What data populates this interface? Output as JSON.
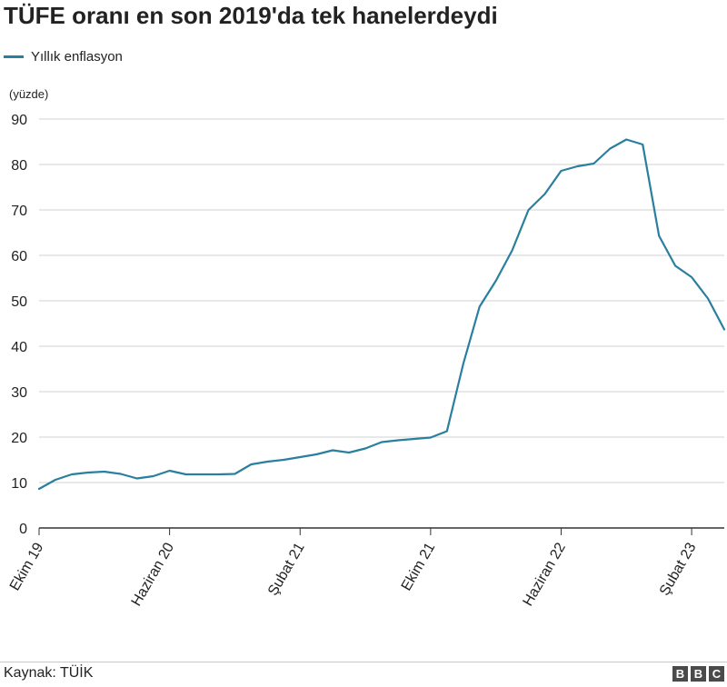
{
  "chart_data": {
    "type": "line",
    "title": "TÜFE oranı en son 2019'da tek hanelerdeydi",
    "ylabel": "(yüzde)",
    "xlabel": "",
    "ylim": [
      0,
      90
    ],
    "yticks": [
      0,
      10,
      20,
      30,
      40,
      50,
      60,
      70,
      80,
      90
    ],
    "legend": "top-left",
    "grid": true,
    "x_tick_labels": [
      {
        "index": 0,
        "label": "Ekim 19"
      },
      {
        "index": 8,
        "label": "Haziran 20"
      },
      {
        "index": 16,
        "label": "Şubat 21"
      },
      {
        "index": 24,
        "label": "Ekim 21"
      },
      {
        "index": 32,
        "label": "Haziran 22"
      },
      {
        "index": 40,
        "label": "Şubat 23"
      }
    ],
    "series": [
      {
        "name": "Yıllık enflasyon",
        "color": "#2a7f9e",
        "values": [
          8.6,
          10.6,
          11.8,
          12.2,
          12.4,
          11.9,
          10.9,
          11.4,
          12.6,
          11.8,
          11.8,
          11.8,
          11.9,
          14.0,
          14.6,
          15.0,
          15.6,
          16.2,
          17.1,
          16.6,
          17.5,
          18.9,
          19.3,
          19.6,
          19.9,
          21.3,
          36.1,
          48.7,
          54.4,
          61.1,
          70.0,
          73.5,
          78.6,
          79.6,
          80.2,
          83.5,
          85.5,
          84.4,
          64.3,
          57.7,
          55.2,
          50.5,
          43.7
        ]
      }
    ]
  },
  "footer": {
    "source": "Kaynak: TÜİK",
    "logo_letters": [
      "B",
      "B",
      "C"
    ]
  }
}
